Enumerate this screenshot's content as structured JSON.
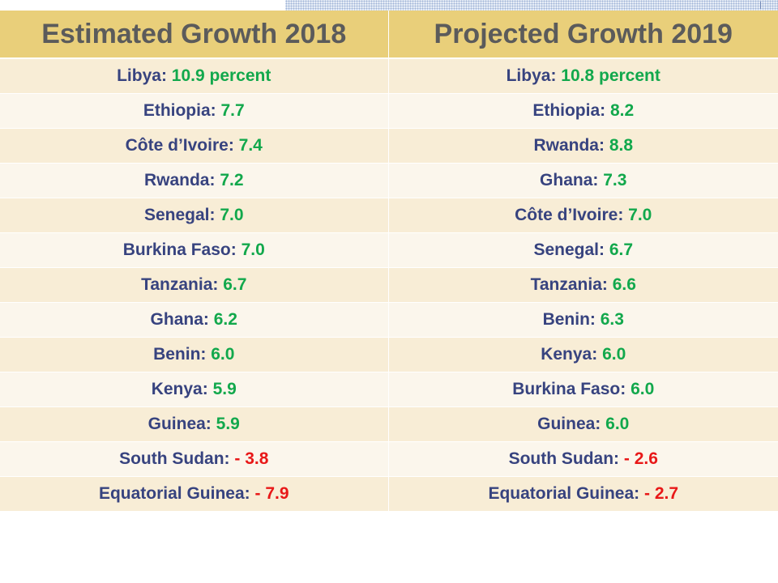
{
  "table": {
    "headers": [
      "Estimated Growth 2018",
      "Projected Growth 2019"
    ],
    "rows": [
      [
        {
          "country": "Libya:",
          "value": "10.9 percent",
          "sign": "positive"
        },
        {
          "country": "Libya:",
          "value": "10.8 percent",
          "sign": "positive"
        }
      ],
      [
        {
          "country": "Ethiopia:",
          "value": "7.7",
          "sign": "positive"
        },
        {
          "country": "Ethiopia:",
          "value": "8.2",
          "sign": "positive"
        }
      ],
      [
        {
          "country": "Côte d’Ivoire:",
          "value": "7.4",
          "sign": "positive"
        },
        {
          "country": "Rwanda:",
          "value": "8.8",
          "sign": "positive"
        }
      ],
      [
        {
          "country": "Rwanda:",
          "value": "7.2",
          "sign": "positive"
        },
        {
          "country": "Ghana:",
          "value": "7.3",
          "sign": "positive"
        }
      ],
      [
        {
          "country": "Senegal:",
          "value": "7.0",
          "sign": "positive"
        },
        {
          "country": "Côte d’Ivoire:",
          "value": "7.0",
          "sign": "positive"
        }
      ],
      [
        {
          "country": "Burkina Faso:",
          "value": "7.0",
          "sign": "positive"
        },
        {
          "country": "Senegal:",
          "value": "6.7",
          "sign": "positive"
        }
      ],
      [
        {
          "country": "Tanzania:",
          "value": "6.7",
          "sign": "positive"
        },
        {
          "country": "Tanzania:",
          "value": "6.6",
          "sign": "positive"
        }
      ],
      [
        {
          "country": "Ghana:",
          "value": "6.2",
          "sign": "positive"
        },
        {
          "country": "Benin:",
          "value": "6.3",
          "sign": "positive"
        }
      ],
      [
        {
          "country": "Benin:",
          "value": "6.0",
          "sign": "positive"
        },
        {
          "country": "Kenya:",
          "value": "6.0",
          "sign": "positive"
        }
      ],
      [
        {
          "country": "Kenya:",
          "value": "5.9",
          "sign": "positive"
        },
        {
          "country": "Burkina Faso:",
          "value": "6.0",
          "sign": "positive"
        }
      ],
      [
        {
          "country": "Guinea:",
          "value": "5.9",
          "sign": "positive"
        },
        {
          "country": "Guinea:",
          "value": "6.0",
          "sign": "positive"
        }
      ],
      [
        {
          "country": "South Sudan:",
          "value": "- 3.8",
          "sign": "negative"
        },
        {
          "country": "South Sudan:",
          "value": "- 2.6",
          "sign": "negative"
        }
      ],
      [
        {
          "country": "Equatorial Guinea:",
          "value": "- 7.9",
          "sign": "negative"
        },
        {
          "country": "Equatorial Guinea:",
          "value": "- 2.7",
          "sign": "negative"
        }
      ]
    ]
  },
  "colors": {
    "header_bg": "#e9cf7a",
    "header_text": "#5b5b5b",
    "row_odd": "#f8edd6",
    "row_even": "#fbf6ec",
    "country_text": "#37437f",
    "positive": "#12a84c",
    "negative": "#e81818"
  }
}
